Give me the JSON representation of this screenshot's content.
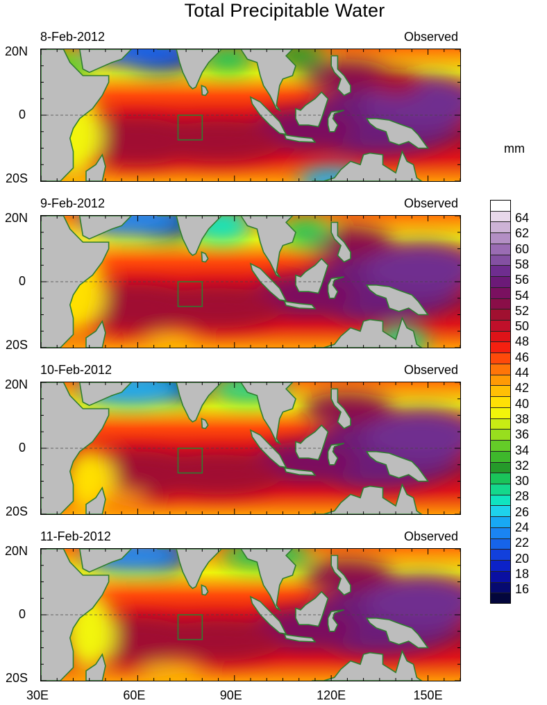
{
  "title": "Total Precipitable Water",
  "units": "mm",
  "panels": [
    {
      "date": "8-Feb-2012",
      "status": "Observed"
    },
    {
      "date": "9-Feb-2012",
      "status": "Observed"
    },
    {
      "date": "10-Feb-2012",
      "status": "Observed"
    },
    {
      "date": "11-Feb-2012",
      "status": "Observed"
    }
  ],
  "lat_labels": [
    "20N",
    "0",
    "20S"
  ],
  "lon_labels": [
    "30E",
    "60E",
    "90E",
    "120E",
    "150E"
  ],
  "colorbar": {
    "labels": [
      "64",
      "62",
      "60",
      "58",
      "56",
      "54",
      "52",
      "50",
      "48",
      "46",
      "44",
      "42",
      "40",
      "38",
      "36",
      "34",
      "32",
      "30",
      "28",
      "26",
      "24",
      "22",
      "20",
      "18",
      "16"
    ],
    "colors": [
      "#ffffff",
      "#e8d8ea",
      "#cdb3d6",
      "#b38fc4",
      "#9a6cb3",
      "#8450a2",
      "#6f2d8f",
      "#6c1a78",
      "#7a1060",
      "#8a0e48",
      "#a01030",
      "#c0102a",
      "#de1318",
      "#f52010",
      "#ff4a0a",
      "#ff7508",
      "#ff9a05",
      "#ffbf05",
      "#ffe005",
      "#f2f50a",
      "#c8ec14",
      "#98de1e",
      "#64cc28",
      "#3eb82c",
      "#259a2a",
      "#1ac45a",
      "#14d88c",
      "#10e4c0",
      "#1ed2ec",
      "#18a8f4",
      "#1a84f2",
      "#1664ea",
      "#1240dc",
      "#0c22c8",
      "#0a10a2",
      "#060a70",
      "#03063c"
    ]
  }
}
